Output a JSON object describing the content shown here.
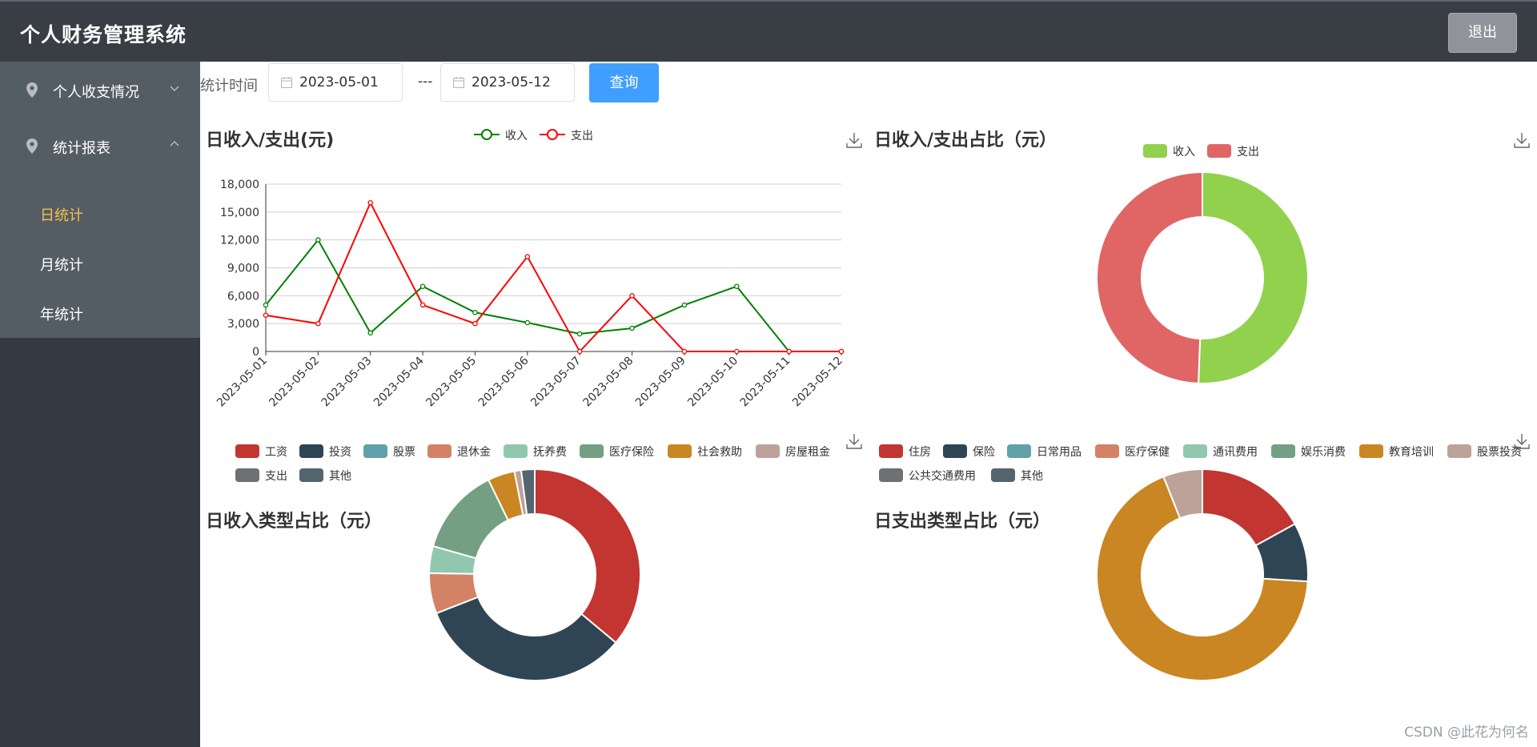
{
  "header": {
    "title": "个人财务管理系统",
    "logout_label": "退出"
  },
  "sidebar": {
    "menus": [
      {
        "label": "个人收支情况",
        "expanded": false
      },
      {
        "label": "统计报表",
        "expanded": true
      }
    ],
    "sub_items": [
      {
        "label": "日统计",
        "active": true
      },
      {
        "label": "月统计",
        "active": false
      },
      {
        "label": "年统计",
        "active": false
      }
    ]
  },
  "filter": {
    "label": "统计时间",
    "start_date": "2023-05-01",
    "separator": "---",
    "end_date": "2023-05-12",
    "query_label": "查询"
  },
  "charts_text": {
    "line_title": "日收入/支出(元)",
    "ratio_title": "日收入/支出占比（元）",
    "income_type_title": "日收入类型占比（元）",
    "expense_type_title": "日支出类型占比（元）"
  },
  "watermark": "CSDN @此花为何名",
  "chart_data": [
    {
      "type": "line",
      "title": "日收入/支出(元)",
      "x": [
        "2023-05-01",
        "2023-05-02",
        "2023-05-03",
        "2023-05-04",
        "2023-05-05",
        "2023-05-06",
        "2023-05-07",
        "2023-05-08",
        "2023-05-09",
        "2023-05-10",
        "2023-05-11",
        "2023-05-12"
      ],
      "ylim": [
        0,
        18000
      ],
      "yticks": [
        0,
        3000,
        6000,
        9000,
        12000,
        15000,
        18000
      ],
      "ytick_labels": [
        "0",
        "3,000",
        "6,000",
        "9,000",
        "12,000",
        "15,000",
        "18,000"
      ],
      "grid": true,
      "legend_position": "top-center",
      "series": [
        {
          "name": "收入",
          "color": "#008000",
          "values": [
            5000,
            12000,
            2000,
            7000,
            4200,
            3100,
            1900,
            2500,
            5000,
            7000,
            0,
            0
          ]
        },
        {
          "name": "支出",
          "color": "#ff0000",
          "values": [
            3900,
            3000,
            16000,
            5000,
            3000,
            10200,
            0,
            6000,
            0,
            0,
            0,
            0
          ]
        }
      ]
    },
    {
      "type": "pie",
      "title": "日收入/支出占比（元）",
      "legend_position": "top-center",
      "labels": [
        "收入",
        "支出"
      ],
      "values": [
        50.6,
        49.4
      ],
      "colors": [
        "#91d14e",
        "#e06666"
      ]
    },
    {
      "type": "pie",
      "title": "日收入类型占比（元）",
      "legend_position": "top",
      "labels": [
        "工资",
        "投资",
        "股票",
        "退休金",
        "抚养费",
        "医疗保险",
        "社会救助",
        "房屋租金",
        "支出",
        "其他"
      ],
      "values": [
        35,
        32,
        0,
        6,
        4,
        13,
        4,
        1,
        0,
        2
      ],
      "colors": [
        "#c23531",
        "#2f4554",
        "#61a0a8",
        "#d48265",
        "#91c7ae",
        "#749f83",
        "#ca8622",
        "#bda29a",
        "#6e7074",
        "#546570"
      ]
    },
    {
      "type": "pie",
      "title": "日支出类型占比（元）",
      "legend_position": "top",
      "labels": [
        "住房",
        "保险",
        "日常用品",
        "医疗保健",
        "通讯费用",
        "娱乐消费",
        "教育培训",
        "股票投资",
        "公共交通费用",
        "其他"
      ],
      "values": [
        17,
        9,
        0,
        0,
        0,
        0,
        68,
        6,
        0,
        0
      ],
      "colors": [
        "#c23531",
        "#2f4554",
        "#61a0a8",
        "#d48265",
        "#91c7ae",
        "#749f83",
        "#ca8622",
        "#bda29a",
        "#6e7074",
        "#546570"
      ]
    }
  ]
}
